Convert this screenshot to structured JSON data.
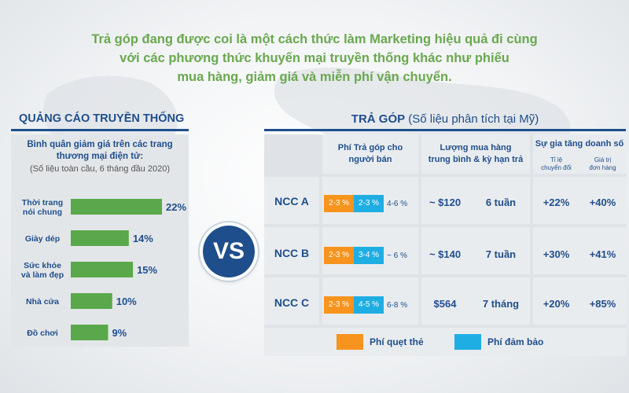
{
  "headline": [
    "Trả góp đang được coi là một cách thức làm Marketing hiệu quả đi cùng",
    "với các phương thức khuyến mại truyền thống khác như phiếu",
    "mua hàng, giảm giá và miễn phí vận chuyển."
  ],
  "left": {
    "title": "QUẢNG CÁO TRUYỀN THỐNG",
    "subtitle_line1": "Bình quân giảm giá trên các trang",
    "subtitle_line2": "thương mại điện tử:",
    "note": "(Số liệu toàn cầu, 6 tháng đầu 2020)"
  },
  "vs": "VS",
  "right": {
    "title_bold": "TRẢ GÓP",
    "title_rest": " (Số liệu phân tích tại Mỹ)",
    "headers": {
      "fee_line1": "Phí Trả góp cho",
      "fee_line2": "người bán",
      "amount_line1": "Lượng mua hàng",
      "amount_line2": "trung bình & kỳ hạn trả",
      "growth": "Sự gia tăng doanh số",
      "growth_sub1_line1": "Tỉ lệ",
      "growth_sub1_line2": "chuyển đổi",
      "growth_sub2_line1": "Giá trị",
      "growth_sub2_line2": "đơn hàng"
    },
    "rows": [
      {
        "name": "NCC A",
        "fee_card": "2-3 %",
        "fee_guarantee": "2-3 %",
        "fee_total": "4-6 %",
        "amount": "~ $120",
        "term": "6 tuần",
        "conversion": "+22%",
        "order_value": "+40%"
      },
      {
        "name": "NCC B",
        "fee_card": "2-3 %",
        "fee_guarantee": "3-4 %",
        "fee_total": "~ 6 %",
        "amount": "~ $140",
        "term": "7 tuần",
        "conversion": "+30%",
        "order_value": "+41%"
      },
      {
        "name": "NCC C",
        "fee_card": "2-3 %",
        "fee_guarantee": "4-5 %",
        "fee_total": "6-8 %",
        "amount": "$564",
        "term": "7 tháng",
        "conversion": "+20%",
        "order_value": "+85%"
      }
    ],
    "legend": [
      {
        "label": "Phí quẹt thẻ",
        "color": "#f7941d"
      },
      {
        "label": "Phí đảm bảo",
        "color": "#1faee3"
      }
    ]
  },
  "colors": {
    "green": "#6aa84f",
    "navy": "#1f4e8c",
    "orange": "#f7941d",
    "blue": "#1faee3",
    "bar": "#59a84b"
  },
  "chart_data": {
    "type": "bar",
    "orientation": "horizontal",
    "title": "Bình quân giảm giá trên các trang thương mại điện tử:",
    "categories": [
      "Thời trang nói chung",
      "Giày dép",
      "Sức khỏe và làm đẹp",
      "Nhà cửa",
      "Đồ chơi"
    ],
    "category_lines": [
      [
        "Thời trang",
        "nói chung"
      ],
      [
        "Giày dép"
      ],
      [
        "Sức khỏe",
        "và làm đẹp"
      ],
      [
        "Nhà cửa"
      ],
      [
        "Đồ chơi"
      ]
    ],
    "values": [
      22,
      14,
      15,
      10,
      9
    ],
    "value_labels": [
      "22%",
      "14%",
      "15%",
      "10%",
      "9%"
    ],
    "xlim": [
      0,
      22
    ],
    "grid": false,
    "color": "#59a84b"
  }
}
